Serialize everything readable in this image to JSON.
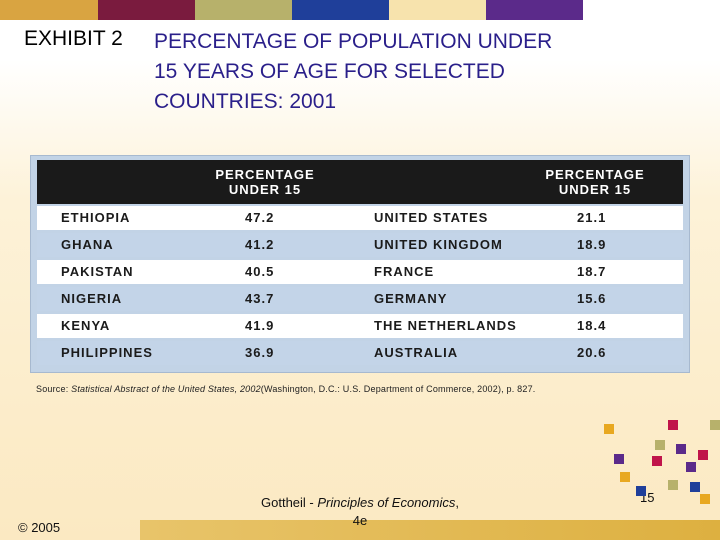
{
  "colors": {
    "top_bar": [
      "#d9a441",
      "#7a1b3e",
      "#b7b16b",
      "#1f3f9a",
      "#f7e3ad",
      "#5b2a8a",
      "#ffffff"
    ],
    "title_color": "#2a1f8a",
    "table_header_bg": "#1a1a1a",
    "table_tint_row": "#c3d4e8",
    "decor_squares": [
      "#e8a820",
      "#5b2a8a",
      "#c0144a",
      "#b7b16b",
      "#1f3f9a"
    ]
  },
  "exhibit": {
    "label": "EXHIBIT 2",
    "title_lines": [
      "PERCENTAGE OF POPULATION UNDER",
      "15 YEARS OF AGE FOR SELECTED",
      "COUNTRIES: 2001"
    ]
  },
  "table": {
    "header_left": [
      "PERCENTAGE",
      "UNDER 15"
    ],
    "header_right": [
      "PERCENTAGE",
      "UNDER 15"
    ],
    "rows": [
      {
        "c1": "ETHIOPIA",
        "v1": "47.2",
        "c2": "UNITED STATES",
        "v2": "21.1"
      },
      {
        "c1": "GHANA",
        "v1": "41.2",
        "c2": "UNITED KINGDOM",
        "v2": "18.9"
      },
      {
        "c1": "PAKISTAN",
        "v1": "40.5",
        "c2": "FRANCE",
        "v2": "18.7"
      },
      {
        "c1": "NIGERIA",
        "v1": "43.7",
        "c2": "GERMANY",
        "v2": "15.6"
      },
      {
        "c1": "KENYA",
        "v1": "41.9",
        "c2": "THE NETHERLANDS",
        "v2": "18.4"
      },
      {
        "c1": "PHILIPPINES",
        "v1": "36.9",
        "c2": "AUSTRALIA",
        "v2": "20.6"
      }
    ]
  },
  "source": {
    "prefix": "Source: ",
    "title_italic": "Statistical Abstract of the United States, 2002",
    "rest": "(Washington, D.C.: U.S. Department of Commerce, 2002), p. 827."
  },
  "footer": {
    "copyright": "© 2005",
    "author": "Gottheil - ",
    "book_italic": "Principles of Economics",
    "after_book": ",",
    "edition": "4e",
    "page_number": "15"
  }
}
